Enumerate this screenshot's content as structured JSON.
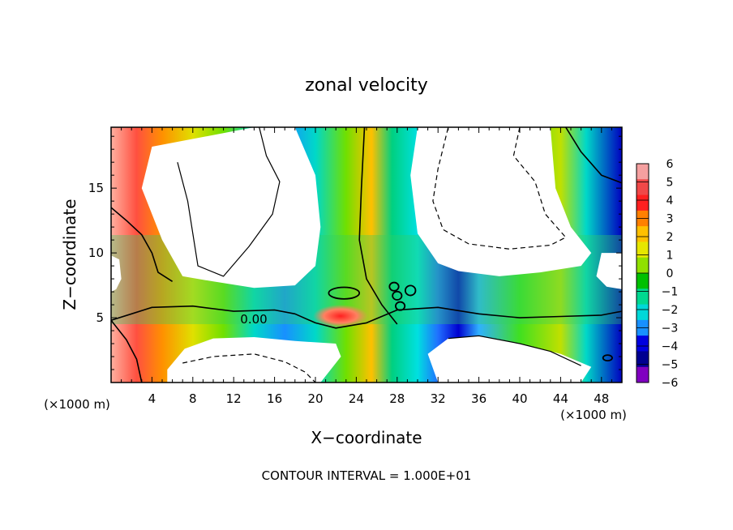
{
  "chart_data": {
    "type": "heatmap",
    "title": "zonal velocity",
    "xlabel": "X−coordinate",
    "ylabel": "Z−coordinate",
    "x_unit_label": "(×1000 m)",
    "y_unit_label": "(×1000 m)",
    "x_ticks": [
      4,
      8,
      12,
      16,
      20,
      24,
      28,
      32,
      36,
      40,
      44,
      48
    ],
    "x_tick_labels": [
      "4",
      "8",
      "12",
      "16",
      "20",
      "24",
      "28",
      "32",
      "36",
      "40",
      "44",
      "48"
    ],
    "y_ticks": [
      5,
      10,
      15
    ],
    "y_tick_labels": [
      "5",
      "10",
      "15"
    ],
    "xlim": [
      0,
      50
    ],
    "ylim": [
      0,
      19.7
    ],
    "contour_label": "0.00",
    "footer": "CONTOUR INTERVAL = 1.000E+01",
    "colorbar": {
      "levels": [
        6,
        5,
        4,
        3,
        2,
        1,
        0,
        -1,
        -2,
        -3,
        -4,
        -5,
        -6
      ],
      "labels": [
        "6",
        "5",
        "4",
        "3",
        "2",
        "1",
        "0",
        "−1",
        "−2",
        "−3",
        "−4",
        "−5",
        "−6"
      ],
      "colors": [
        "#f5a0a0",
        "#f04848",
        "#ff2020",
        "#ff8000",
        "#ffc000",
        "#e6e600",
        "#90e000",
        "#00c000",
        "#00d890",
        "#00d8d8",
        "#1890ff",
        "#0000e0",
        "#000090",
        "#8000c0"
      ]
    },
    "regions": [
      {
        "name": "white-upper-left",
        "value": 0,
        "color": "#ffffff",
        "points": [
          [
            4,
            18.2
          ],
          [
            14,
            19.7
          ],
          [
            18,
            19.7
          ],
          [
            20,
            16
          ],
          [
            20.5,
            12
          ],
          [
            20,
            9
          ],
          [
            18,
            7.5
          ],
          [
            14,
            7.3
          ],
          [
            10,
            7.8
          ],
          [
            7,
            8.2
          ],
          [
            5,
            11
          ],
          [
            3,
            15
          ]
        ]
      },
      {
        "name": "white-upper-right",
        "value": 0,
        "color": "#ffffff",
        "points": [
          [
            30,
            19.7
          ],
          [
            43,
            19.7
          ],
          [
            43.5,
            15
          ],
          [
            45,
            12
          ],
          [
            47,
            10
          ],
          [
            46,
            9
          ],
          [
            42,
            8.5
          ],
          [
            38,
            8.2
          ],
          [
            34,
            8.6
          ],
          [
            32,
            9.2
          ],
          [
            30,
            11.5
          ],
          [
            29.3,
            16
          ]
        ]
      },
      {
        "name": "white-lower-left",
        "value": 0,
        "color": "#ffffff",
        "points": [
          [
            5.5,
            0
          ],
          [
            20.5,
            0
          ],
          [
            22.5,
            2
          ],
          [
            22,
            3
          ],
          [
            18,
            3.2
          ],
          [
            14,
            3.5
          ],
          [
            10,
            3.4
          ],
          [
            7.2,
            2.6
          ],
          [
            5.5,
            1
          ]
        ]
      },
      {
        "name": "white-lower-right",
        "value": 0,
        "color": "#ffffff",
        "points": [
          [
            32,
            0
          ],
          [
            46,
            0
          ],
          [
            47,
            1.2
          ],
          [
            44,
            2.2
          ],
          [
            40,
            3
          ],
          [
            36,
            3.6
          ],
          [
            33,
            3.4
          ],
          [
            31,
            2.2
          ]
        ]
      },
      {
        "name": "white-right-notch",
        "value": 0,
        "color": "#ffffff",
        "points": [
          [
            50,
            10
          ],
          [
            48,
            10
          ],
          [
            47.5,
            8.2
          ],
          [
            48.5,
            7.4
          ],
          [
            50,
            7.2
          ]
        ]
      },
      {
        "name": "white-left-notch",
        "value": 0,
        "color": "#ffffff",
        "points": [
          [
            0,
            9.8
          ],
          [
            0.8,
            9.5
          ],
          [
            1,
            8
          ],
          [
            0.5,
            7.2
          ],
          [
            0,
            7
          ]
        ]
      }
    ],
    "contour_lines": [
      {
        "style": "solid",
        "width": 1.6,
        "points": [
          [
            0,
            4.8
          ],
          [
            2,
            5.3
          ],
          [
            4,
            5.8
          ],
          [
            8,
            5.9
          ],
          [
            12,
            5.5
          ],
          [
            16,
            5.6
          ],
          [
            18,
            5.3
          ],
          [
            20,
            4.6
          ],
          [
            22,
            4.2
          ],
          [
            25,
            4.6
          ],
          [
            28,
            5.6
          ],
          [
            32,
            5.8
          ],
          [
            36,
            5.3
          ],
          [
            40,
            5
          ],
          [
            44,
            5.1
          ],
          [
            48,
            5.2
          ],
          [
            50,
            5.5
          ]
        ]
      },
      {
        "style": "solid",
        "width": 1.6,
        "points": [
          [
            0,
            13.5
          ],
          [
            1.5,
            12.5
          ],
          [
            3,
            11.4
          ],
          [
            4,
            10
          ],
          [
            4.6,
            8.5
          ],
          [
            6,
            7.8
          ]
        ]
      },
      {
        "style": "solid",
        "width": 1.6,
        "points": [
          [
            24.8,
            19.7
          ],
          [
            24.5,
            15
          ],
          [
            24.3,
            11
          ],
          [
            25,
            8
          ],
          [
            26.5,
            6
          ],
          [
            28,
            4.5
          ]
        ]
      },
      {
        "style": "solid",
        "width": 1.6,
        "points": [
          [
            0,
            4.8
          ],
          [
            1.5,
            3.3
          ],
          [
            2.5,
            1.8
          ],
          [
            3,
            0
          ]
        ]
      },
      {
        "style": "solid",
        "width": 1.2,
        "points": [
          [
            14.5,
            19.7
          ],
          [
            15.2,
            17.5
          ],
          [
            16.5,
            15.5
          ],
          [
            15.8,
            13
          ],
          [
            13.5,
            10.5
          ],
          [
            11,
            8.2
          ],
          [
            8.5,
            9
          ],
          [
            8,
            11.5
          ],
          [
            7.5,
            14
          ],
          [
            6.5,
            17
          ]
        ]
      },
      {
        "style": "solid",
        "width": 1.2,
        "points": [
          [
            33,
            3.4
          ],
          [
            36,
            3.6
          ],
          [
            40,
            3
          ],
          [
            43,
            2.4
          ],
          [
            46,
            1.3
          ]
        ]
      },
      {
        "style": "solid",
        "width": 1.6,
        "points": [
          [
            44.5,
            19.7
          ],
          [
            46,
            17.8
          ],
          [
            48,
            16
          ],
          [
            50,
            15.4
          ]
        ]
      },
      {
        "style": "dashed",
        "width": 1.2,
        "points": [
          [
            40,
            19.7
          ],
          [
            39.4,
            17.5
          ],
          [
            41.5,
            15.5
          ],
          [
            42.5,
            13
          ],
          [
            44.5,
            11.2
          ],
          [
            43,
            10.6
          ],
          [
            39,
            10.3
          ],
          [
            35,
            10.7
          ],
          [
            32.5,
            11.8
          ],
          [
            31.5,
            14
          ],
          [
            32,
            16.5
          ],
          [
            33,
            19.7
          ]
        ]
      },
      {
        "style": "dashed",
        "width": 1.2,
        "points": [
          [
            7,
            1.5
          ],
          [
            10,
            2
          ],
          [
            14,
            2.2
          ],
          [
            17,
            1.6
          ],
          [
            19,
            0.8
          ],
          [
            20,
            0
          ]
        ]
      }
    ],
    "contour_loops": [
      {
        "cx": 22.8,
        "cy": 6.9,
        "rx": 1.5,
        "ry": 0.45
      },
      {
        "cx": 27.7,
        "cy": 7.4,
        "rx": 0.45,
        "ry": 0.32
      },
      {
        "cx": 28.0,
        "cy": 6.7,
        "rx": 0.45,
        "ry": 0.32
      },
      {
        "cx": 28.3,
        "cy": 5.9,
        "rx": 0.45,
        "ry": 0.32
      },
      {
        "cx": 29.3,
        "cy": 7.1,
        "rx": 0.5,
        "ry": 0.38
      },
      {
        "cx": 48.6,
        "cy": 1.9,
        "rx": 0.45,
        "ry": 0.22
      }
    ]
  }
}
